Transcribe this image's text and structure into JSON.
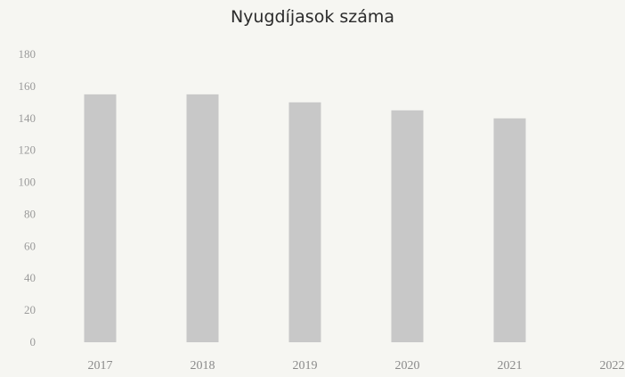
{
  "chart_data": {
    "type": "bar",
    "title": "Nyugdíjasok száma",
    "xlabel": "",
    "ylabel": "",
    "categories": [
      "2017",
      "2018",
      "2019",
      "2020",
      "2021",
      "2022"
    ],
    "values": [
      155,
      155,
      150,
      145,
      140,
      null
    ],
    "ylim": [
      0,
      180
    ],
    "yticks": [
      0,
      20,
      40,
      60,
      80,
      100,
      120,
      140,
      160,
      180
    ],
    "grid": false,
    "legend": "none",
    "bar_color": "#c8c8c8"
  }
}
